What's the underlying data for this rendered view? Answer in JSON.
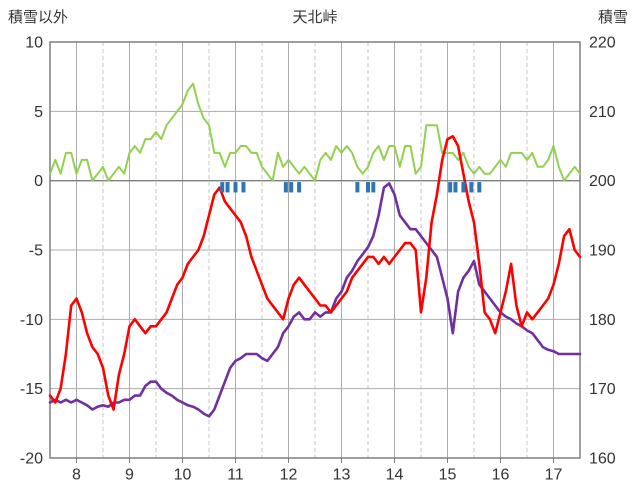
{
  "chart_data": {
    "type": "line",
    "title": "天北峠",
    "left_axis_label": "積雪以外",
    "right_axis_label": "積雪",
    "xlim": [
      7.5,
      17.5
    ],
    "x_ticks": [
      8,
      9,
      10,
      11,
      12,
      13,
      14,
      15,
      16,
      17
    ],
    "left_ylim": [
      -20,
      10
    ],
    "left_ticks": [
      10,
      5,
      0,
      -5,
      -10,
      -15,
      -20
    ],
    "right_ticks": [
      220,
      210,
      200,
      190,
      180,
      170,
      160
    ],
    "x_start": 7.5,
    "x_step": 0.1,
    "grid": {
      "major_color": "#ababab",
      "minor_color": "#c6c6c6",
      "border_color": "#7f7f7f",
      "zero_color": "#7f7f7f"
    },
    "series": [
      {
        "name": "green",
        "color": "#92d050",
        "width": 2,
        "y": [
          0.5,
          1.5,
          0.5,
          2,
          2,
          0.5,
          1.5,
          1.5,
          0,
          0.5,
          1,
          0,
          0.5,
          1,
          0.5,
          2,
          2.5,
          2,
          3,
          3,
          3.5,
          3,
          4,
          4.5,
          5,
          5.5,
          6.5,
          7,
          5.5,
          4.5,
          4,
          2,
          2,
          1,
          2,
          2,
          2.5,
          2.5,
          2,
          2,
          1,
          0.5,
          0,
          2,
          1,
          1.5,
          1,
          0.5,
          1,
          0.5,
          0,
          1.5,
          2,
          1.5,
          2.5,
          2,
          2.5,
          2,
          1,
          0.5,
          1,
          2,
          2.5,
          1.5,
          2.5,
          2.5,
          1,
          2.5,
          2.5,
          0.5,
          1,
          4,
          4,
          4,
          2,
          2,
          2,
          1.5,
          2,
          1,
          0.5,
          1,
          0.5,
          0.5,
          1,
          1.5,
          1,
          2,
          2,
          2,
          1.5,
          2,
          1,
          1,
          1.5,
          2.5,
          1,
          0,
          0.5,
          1,
          0.5
        ]
      },
      {
        "name": "purple",
        "color": "#7030a0",
        "width": 2.6,
        "y": [
          -16,
          -15.8,
          -16,
          -15.8,
          -16,
          -15.8,
          -16,
          -16.2,
          -16.5,
          -16.3,
          -16.2,
          -16.3,
          -16,
          -16,
          -15.8,
          -15.8,
          -15.5,
          -15.5,
          -14.8,
          -14.5,
          -14.5,
          -15,
          -15.3,
          -15.5,
          -15.8,
          -16,
          -16.2,
          -16.3,
          -16.5,
          -16.8,
          -17,
          -16.5,
          -15.5,
          -14.5,
          -13.5,
          -13,
          -12.8,
          -12.5,
          -12.5,
          -12.5,
          -12.8,
          -13,
          -12.5,
          -12,
          -11,
          -10.5,
          -9.8,
          -9.5,
          -10,
          -10,
          -9.5,
          -9.8,
          -9.5,
          -9.5,
          -8.5,
          -8,
          -7,
          -6.5,
          -5.8,
          -5.3,
          -4.8,
          -4,
          -2.5,
          -0.5,
          -0.2,
          -1,
          -2.5,
          -3,
          -3.5,
          -3.5,
          -4,
          -4.5,
          -5,
          -5.5,
          -7,
          -8.5,
          -11,
          -8,
          -7,
          -6.5,
          -5.8,
          -7.5,
          -8,
          -8.5,
          -9,
          -9.5,
          -9.8,
          -10,
          -10.3,
          -10.5,
          -10.8,
          -11,
          -11.5,
          -12,
          -12.2,
          -12.3,
          -12.5,
          -12.5,
          -12.5,
          -12.5,
          -12.5
        ]
      },
      {
        "name": "red",
        "color": "#ff0000",
        "width": 2.6,
        "y": [
          -15.5,
          -16,
          -15,
          -12.5,
          -9,
          -8.5,
          -9.5,
          -11,
          -12,
          -12.5,
          -13.5,
          -15.5,
          -16.5,
          -14,
          -12.5,
          -10.5,
          -10,
          -10.5,
          -11,
          -10.5,
          -10.5,
          -10,
          -9.5,
          -8.5,
          -7.5,
          -7,
          -6,
          -5.5,
          -5,
          -4,
          -2.5,
          -1,
          -0.5,
          -1.5,
          -2,
          -2.5,
          -3,
          -4,
          -5.5,
          -6.5,
          -7.5,
          -8.5,
          -9,
          -9.5,
          -10,
          -8.5,
          -7.5,
          -7,
          -7.5,
          -8,
          -8.5,
          -9,
          -9,
          -9.5,
          -9,
          -8.5,
          -8,
          -7,
          -6.5,
          -6,
          -5.5,
          -5.5,
          -6,
          -5.5,
          -6,
          -5.5,
          -5,
          -4.5,
          -4.5,
          -5,
          -9.5,
          -7,
          -3,
          -1,
          1.5,
          3,
          3.2,
          2.5,
          0.5,
          -1.5,
          -3,
          -6,
          -9.5,
          -10,
          -11,
          -9.5,
          -8,
          -6,
          -9,
          -10.5,
          -9.5,
          -10,
          -9.5,
          -9,
          -8.5,
          -7.5,
          -6,
          -4,
          -3.5,
          -5,
          -5.5
        ]
      }
    ],
    "precip_markers": {
      "color": "#2e75b6",
      "x": [
        10.75,
        10.85,
        11.0,
        11.15,
        11.95,
        12.05,
        12.2,
        13.3,
        13.5,
        13.6,
        15.05,
        15.15,
        15.3,
        15.45,
        15.6
      ],
      "y_top": -0.1,
      "y_bottom": -0.85,
      "width": 4
    }
  }
}
